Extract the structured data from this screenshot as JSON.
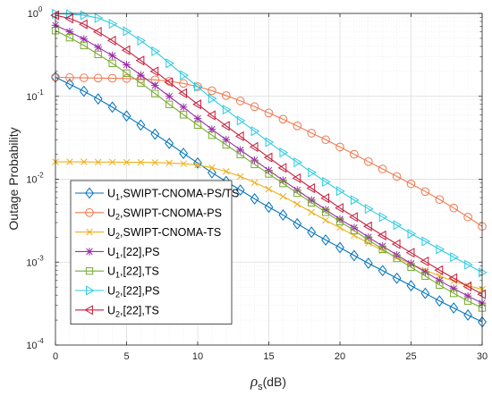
{
  "chart_data": {
    "type": "line",
    "xlabel": "ρs(dB)",
    "ylabel": "Outage Probability",
    "xlim": [
      0,
      30
    ],
    "ylim": [
      0.0001,
      1
    ],
    "y_scale": "log",
    "grid": true,
    "minor_grid": true,
    "legend_position": "bottom-left",
    "x_ticks": [
      "0",
      "5",
      "10",
      "15",
      "20",
      "25",
      "30"
    ],
    "y_ticks": [
      {
        "base": "10",
        "exp": "0"
      },
      {
        "base": "10",
        "exp": "-1"
      },
      {
        "base": "10",
        "exp": "-2"
      },
      {
        "base": "10",
        "exp": "-3"
      },
      {
        "base": "10",
        "exp": "-4"
      }
    ],
    "x": [
      0,
      1,
      2,
      3,
      4,
      5,
      6,
      7,
      8,
      9,
      10,
      11,
      12,
      13,
      14,
      15,
      16,
      17,
      18,
      19,
      20,
      21,
      22,
      23,
      24,
      25,
      26,
      27,
      28,
      29,
      30
    ],
    "series": [
      {
        "label": {
          "main": "U",
          "sub": "1",
          "rest": ",SWIPT-CNOMA-PS/TS"
        },
        "color": "#0072BD",
        "marker": "diamond",
        "values": [
          0.17,
          0.14,
          0.115,
          0.093,
          0.074,
          0.058,
          0.045,
          0.035,
          0.027,
          0.0205,
          0.0157,
          0.012,
          0.0094,
          0.0074,
          0.0058,
          0.0046,
          0.0037,
          0.0029,
          0.0023,
          0.00185,
          0.0015,
          0.0012,
          0.00097,
          0.00079,
          0.00064,
          0.00052,
          0.00042,
          0.00034,
          0.00028,
          0.00023,
          0.00019
        ]
      },
      {
        "label": {
          "main": "U",
          "sub": "2",
          "rest": ",SWIPT-CNOMA-PS"
        },
        "color": "#F07850",
        "marker": "circle",
        "values": [
          0.17,
          0.168,
          0.167,
          0.166,
          0.165,
          0.164,
          0.162,
          0.158,
          0.152,
          0.143,
          0.131,
          0.117,
          0.102,
          0.088,
          0.075,
          0.063,
          0.053,
          0.044,
          0.036,
          0.03,
          0.0245,
          0.02,
          0.0163,
          0.0133,
          0.0108,
          0.0088,
          0.0071,
          0.0057,
          0.0045,
          0.0035,
          0.0027
        ]
      },
      {
        "label": {
          "main": "U",
          "sub": "2",
          "rest": ",SWIPT-CNOMA-TS"
        },
        "color": "#EDB120",
        "marker": "x",
        "values": [
          0.0162,
          0.0162,
          0.0162,
          0.0161,
          0.0161,
          0.016,
          0.016,
          0.0159,
          0.0157,
          0.0154,
          0.0148,
          0.0138,
          0.0124,
          0.0108,
          0.0091,
          0.0076,
          0.0062,
          0.005,
          0.004,
          0.0032,
          0.0026,
          0.0021,
          0.0017,
          0.00138,
          0.00114,
          0.00095,
          0.0008,
          0.00068,
          0.00059,
          0.00052,
          0.00047
        ]
      },
      {
        "label": {
          "main": "U",
          "sub": "1",
          "rest": ",[22],PS"
        },
        "color": "#9B2FA8",
        "marker": "asterisk",
        "values": [
          0.72,
          0.6,
          0.49,
          0.39,
          0.31,
          0.24,
          0.18,
          0.135,
          0.1,
          0.074,
          0.054,
          0.04,
          0.03,
          0.0225,
          0.017,
          0.0128,
          0.0097,
          0.0074,
          0.0056,
          0.0043,
          0.0033,
          0.0026,
          0.002,
          0.00156,
          0.00122,
          0.00096,
          0.00076,
          0.0006,
          0.00048,
          0.00039,
          0.00032
        ]
      },
      {
        "label": {
          "main": "U",
          "sub": "1",
          "rest": ",[22],TS"
        },
        "color": "#77AC30",
        "marker": "square",
        "values": [
          0.62,
          0.51,
          0.41,
          0.32,
          0.25,
          0.19,
          0.145,
          0.108,
          0.08,
          0.06,
          0.045,
          0.034,
          0.026,
          0.0198,
          0.0151,
          0.0116,
          0.0089,
          0.0068,
          0.0052,
          0.004,
          0.0031,
          0.0024,
          0.00185,
          0.00143,
          0.00111,
          0.00087,
          0.00068,
          0.00053,
          0.00042,
          0.00034,
          0.00028
        ]
      },
      {
        "label": {
          "main": "U",
          "sub": "2",
          "rest": ",[22],PS"
        },
        "color": "#2ECBE0",
        "marker": "triangle-right",
        "values": [
          0.99,
          0.98,
          0.95,
          0.88,
          0.75,
          0.61,
          0.47,
          0.35,
          0.25,
          0.18,
          0.13,
          0.094,
          0.069,
          0.051,
          0.038,
          0.028,
          0.021,
          0.016,
          0.0121,
          0.0093,
          0.0072,
          0.0056,
          0.0044,
          0.0035,
          0.0028,
          0.0022,
          0.00178,
          0.00143,
          0.00115,
          0.00093,
          0.00075
        ]
      },
      {
        "label": {
          "main": "U",
          "sub": "2",
          "rest": ",[22],TS"
        },
        "color": "#C81E3C",
        "marker": "triangle-left",
        "values": [
          0.95,
          0.87,
          0.74,
          0.6,
          0.47,
          0.36,
          0.27,
          0.2,
          0.148,
          0.109,
          0.08,
          0.059,
          0.044,
          0.033,
          0.0245,
          0.0183,
          0.0137,
          0.0103,
          0.0078,
          0.0059,
          0.0045,
          0.0035,
          0.0027,
          0.0021,
          0.00165,
          0.0013,
          0.00102,
          0.0008,
          0.00064,
          0.00051,
          0.00041
        ]
      }
    ]
  }
}
